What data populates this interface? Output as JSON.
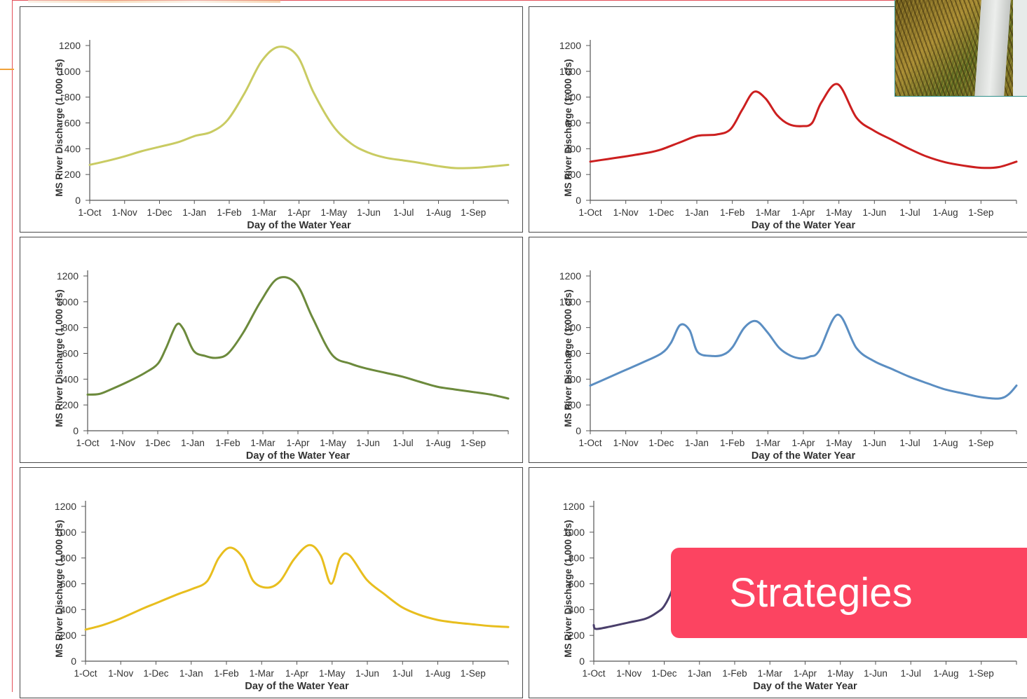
{
  "banner": {
    "text": "Strategies"
  },
  "chart_data": [
    {
      "type": "line",
      "xlabel": "Day of the Water Year",
      "ylabel": "MS River Discharge (1,000 cfs)",
      "ylim": [
        0,
        1200
      ],
      "yticks": [
        0,
        200,
        400,
        600,
        800,
        1000,
        1200
      ],
      "categories": [
        "1-Oct",
        "1-Nov",
        "1-Dec",
        "1-Jan",
        "1-Feb",
        "1-Mar",
        "1-Apr",
        "1-May",
        "1-Jun",
        "1-Jul",
        "1-Aug",
        "1-Sep"
      ],
      "series": [
        {
          "color": "#c9cb62",
          "x": [
            0,
            15,
            30,
            45,
            61,
            77,
            92,
            106,
            120,
            135,
            150,
            165,
            181,
            195,
            212,
            228,
            243,
            258,
            273,
            288,
            304,
            319,
            335,
            350,
            365
          ],
          "values": [
            275,
            305,
            340,
            380,
            415,
            450,
            500,
            530,
            620,
            830,
            1080,
            1190,
            1120,
            840,
            580,
            440,
            370,
            330,
            310,
            290,
            265,
            250,
            252,
            262,
            275
          ]
        }
      ]
    },
    {
      "type": "line",
      "xlabel": "Day of the Water Year",
      "ylabel": "MS River Discharge (1,000 cfs)",
      "ylim": [
        0,
        1200
      ],
      "yticks": [
        0,
        200,
        400,
        600,
        800,
        1000,
        1200
      ],
      "categories": [
        "1-Oct",
        "1-Nov",
        "1-Dec",
        "1-Jan",
        "1-Feb",
        "1-Mar",
        "1-Apr",
        "1-May",
        "1-Jun",
        "1-Jul",
        "1-Aug",
        "1-Sep"
      ],
      "series": [
        {
          "color": "#cc1f1f",
          "x": [
            0,
            15,
            30,
            50,
            61,
            77,
            92,
            108,
            120,
            130,
            140,
            150,
            160,
            170,
            181,
            190,
            198,
            212,
            228,
            243,
            258,
            273,
            288,
            304,
            319,
            335,
            350,
            365
          ],
          "values": [
            300,
            320,
            340,
            370,
            395,
            450,
            500,
            510,
            550,
            700,
            840,
            790,
            660,
            590,
            575,
            600,
            760,
            900,
            640,
            540,
            470,
            400,
            340,
            295,
            270,
            252,
            258,
            300
          ]
        }
      ]
    },
    {
      "type": "line",
      "xlabel": "Day of the Water Year",
      "ylabel": "MS River Discharge (1,000 cfs)",
      "ylim": [
        0,
        1200
      ],
      "yticks": [
        0,
        200,
        400,
        600,
        800,
        1000,
        1200
      ],
      "categories": [
        "1-Oct",
        "1-Nov",
        "1-Dec",
        "1-Jan",
        "1-Feb",
        "1-Mar",
        "1-Apr",
        "1-May",
        "1-Jun",
        "1-Jul",
        "1-Aug",
        "1-Sep"
      ],
      "series": [
        {
          "color": "#6c8a3c",
          "x": [
            0,
            10,
            20,
            35,
            50,
            61,
            68,
            77,
            83,
            92,
            102,
            112,
            122,
            135,
            150,
            165,
            181,
            195,
            212,
            228,
            243,
            258,
            273,
            288,
            304,
            319,
            335,
            350,
            365
          ],
          "values": [
            280,
            285,
            320,
            380,
            450,
            520,
            640,
            820,
            790,
            620,
            580,
            565,
            600,
            760,
            1000,
            1180,
            1140,
            880,
            590,
            520,
            480,
            450,
            420,
            380,
            340,
            320,
            300,
            280,
            250
          ]
        }
      ]
    },
    {
      "type": "line",
      "xlabel": "Day of the Water Year",
      "ylabel": "MS River Discharge (1,000 cfs)",
      "ylim": [
        0,
        1200
      ],
      "yticks": [
        0,
        200,
        400,
        600,
        800,
        1000,
        1200
      ],
      "categories": [
        "1-Oct",
        "1-Nov",
        "1-Dec",
        "1-Jan",
        "1-Feb",
        "1-Mar",
        "1-Apr",
        "1-May",
        "1-Jun",
        "1-Jul",
        "1-Aug",
        "1-Sep"
      ],
      "series": [
        {
          "color": "#5b8ec2",
          "x": [
            0,
            15,
            30,
            45,
            61,
            69,
            77,
            85,
            92,
            104,
            114,
            122,
            132,
            142,
            152,
            162,
            172,
            181,
            188,
            196,
            212,
            228,
            243,
            258,
            273,
            288,
            304,
            319,
            335,
            350,
            358,
            365
          ],
          "values": [
            350,
            410,
            470,
            530,
            600,
            680,
            820,
            780,
            610,
            580,
            590,
            650,
            800,
            850,
            760,
            640,
            580,
            560,
            575,
            620,
            900,
            640,
            540,
            480,
            420,
            370,
            320,
            290,
            260,
            250,
            280,
            350
          ]
        }
      ]
    },
    {
      "type": "line",
      "xlabel": "Day of the Water Year",
      "ylabel": "MS River Discharge (1,000 cfs)",
      "ylim": [
        0,
        1200
      ],
      "yticks": [
        0,
        200,
        400,
        600,
        800,
        1000,
        1200
      ],
      "categories": [
        "1-Oct",
        "1-Nov",
        "1-Dec",
        "1-Jan",
        "1-Feb",
        "1-Mar",
        "1-Apr",
        "1-May",
        "1-Jun",
        "1-Jul",
        "1-Aug",
        "1-Sep"
      ],
      "series": [
        {
          "color": "#e8be1e",
          "x": [
            0,
            15,
            30,
            50,
            61,
            80,
            92,
            105,
            115,
            125,
            136,
            145,
            157,
            168,
            180,
            193,
            203,
            212,
            220,
            228,
            243,
            258,
            273,
            288,
            304,
            319,
            335,
            350,
            365
          ],
          "values": [
            245,
            280,
            330,
            410,
            450,
            520,
            560,
            620,
            800,
            880,
            800,
            620,
            570,
            620,
            790,
            900,
            820,
            600,
            800,
            820,
            630,
            520,
            420,
            360,
            320,
            300,
            285,
            272,
            265
          ]
        }
      ]
    },
    {
      "type": "line",
      "xlabel": "Day of the Water Year",
      "ylabel": "MS River Discharge (1,000 cfs)",
      "ylim": [
        0,
        1200
      ],
      "yticks": [
        0,
        200,
        400,
        600,
        800,
        1000,
        1200
      ],
      "categories": [
        "1-Oct",
        "1-Nov",
        "1-Dec",
        "1-Jan",
        "1-Feb",
        "1-Mar",
        "1-Apr",
        "1-May",
        "1-Jun",
        "1-Jul",
        "1-Aug",
        "1-Sep"
      ],
      "series": [
        {
          "color": "#4a3f6b",
          "x": [
            0,
            2,
            15,
            30,
            45,
            55,
            61,
            68,
            75
          ],
          "values": [
            280,
            250,
            270,
            300,
            330,
            380,
            430,
            560,
            780
          ]
        }
      ]
    }
  ]
}
